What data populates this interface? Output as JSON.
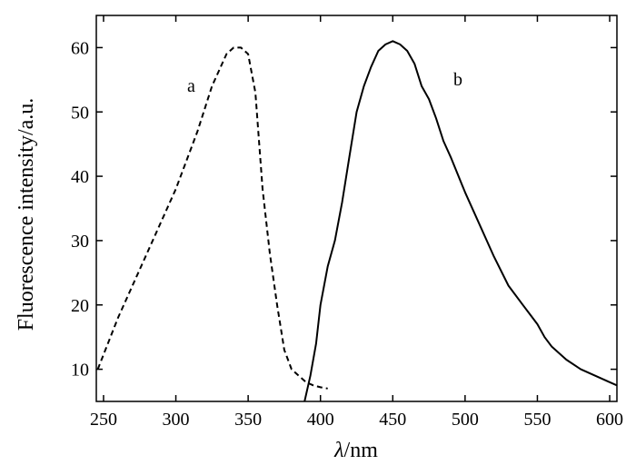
{
  "chart_data": {
    "type": "line",
    "title": "",
    "xlabel": {
      "symbol": "λ",
      "unit": "/nm"
    },
    "ylabel": "Fluorescence intensity/a.u.",
    "xlim": [
      245,
      605
    ],
    "ylim": [
      5,
      65
    ],
    "xticks": [
      250,
      300,
      350,
      400,
      450,
      500,
      550,
      600
    ],
    "yticks": [
      10,
      20,
      30,
      40,
      50,
      60
    ],
    "grid": false,
    "legend": "none",
    "series": [
      {
        "name": "a",
        "style": "dashed",
        "color": "#000000",
        "x": [
          246,
          260,
          280,
          300,
          315,
          325,
          335,
          340,
          345,
          350,
          355,
          360,
          365,
          370,
          375,
          380,
          385,
          390,
          395,
          400,
          405
        ],
        "y": [
          10,
          18,
          28,
          38,
          47,
          54,
          59,
          60,
          60,
          59,
          53,
          38,
          28,
          20,
          13,
          10,
          9,
          8,
          7.5,
          7.2,
          7
        ]
      },
      {
        "name": "b",
        "style": "solid",
        "color": "#000000",
        "x": [
          389,
          393,
          397,
          400,
          405,
          410,
          415,
          420,
          425,
          430,
          435,
          440,
          445,
          450,
          455,
          460,
          465,
          470,
          475,
          480,
          485,
          490,
          500,
          510,
          520,
          530,
          540,
          545,
          550,
          555,
          560,
          570,
          580,
          590,
          600,
          605
        ],
        "y": [
          5,
          9,
          14,
          20,
          26,
          30,
          36,
          43,
          50,
          54,
          57,
          59.5,
          60.5,
          61,
          60.5,
          59.5,
          57.5,
          54,
          52,
          49,
          45.5,
          43,
          37.5,
          32.5,
          27.5,
          23,
          20,
          18.5,
          17,
          15,
          13.5,
          11.5,
          10,
          9,
          8,
          7.5
        ]
      }
    ]
  }
}
